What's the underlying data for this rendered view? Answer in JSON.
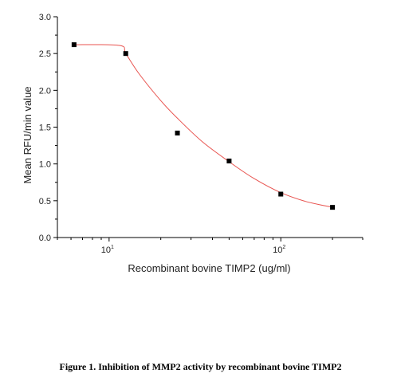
{
  "chart_data": {
    "type": "scatter",
    "xlabel": "Recombinant bovine TIMP2 (ug/ml)",
    "ylabel": "Mean RFU/min value",
    "x_scale": "log",
    "xlim": [
      5,
      300
    ],
    "ylim": [
      0,
      3.0
    ],
    "x_ticks": [
      {
        "value": 10,
        "label": "10",
        "exp": "1"
      },
      {
        "value": 100,
        "label": "10",
        "exp": "2"
      }
    ],
    "y_ticks": [
      {
        "value": 0,
        "label": "0.0"
      },
      {
        "value": 0.5,
        "label": "0.5"
      },
      {
        "value": 1.0,
        "label": "1.0"
      },
      {
        "value": 1.5,
        "label": "1.5"
      },
      {
        "value": 2.0,
        "label": "2.0"
      },
      {
        "value": 2.5,
        "label": "2.5"
      },
      {
        "value": 3.0,
        "label": "3.0"
      }
    ],
    "points": [
      {
        "x": 6.25,
        "y": 2.62
      },
      {
        "x": 12.5,
        "y": 2.5
      },
      {
        "x": 25,
        "y": 1.42
      },
      {
        "x": 50,
        "y": 1.04
      },
      {
        "x": 100,
        "y": 0.59
      },
      {
        "x": 200,
        "y": 0.41
      }
    ],
    "fit_curve": [
      {
        "x": 6.25,
        "y": 2.62
      },
      {
        "x": 11.5,
        "y": 2.61
      },
      {
        "x": 12.5,
        "y": 2.5
      },
      {
        "x": 15,
        "y": 2.22
      },
      {
        "x": 20,
        "y": 1.86
      },
      {
        "x": 25,
        "y": 1.62
      },
      {
        "x": 35,
        "y": 1.3
      },
      {
        "x": 50,
        "y": 1.03
      },
      {
        "x": 70,
        "y": 0.8
      },
      {
        "x": 100,
        "y": 0.61
      },
      {
        "x": 140,
        "y": 0.49
      },
      {
        "x": 200,
        "y": 0.41
      }
    ],
    "point_color": "#000000",
    "fit_color": "#e8534f",
    "grid": false
  },
  "caption": "Figure 1. Inhibition of MMP2 activity by recombinant bovine TIMP2"
}
